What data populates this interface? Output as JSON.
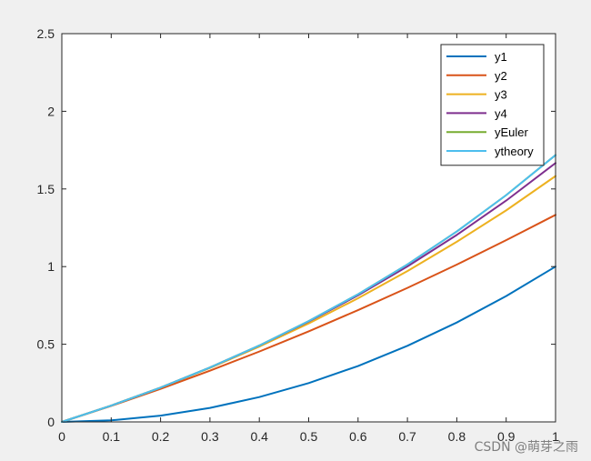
{
  "chart_data": {
    "type": "line",
    "xlim": [
      0,
      1
    ],
    "ylim": [
      0,
      2.5
    ],
    "xticks": [
      0,
      0.1,
      0.2,
      0.3,
      0.4,
      0.5,
      0.6,
      0.7,
      0.8,
      0.9,
      1
    ],
    "xtick_labels": [
      "0",
      "0.1",
      "0.2",
      "0.3",
      "0.4",
      "0.5",
      "0.6",
      "0.7",
      "0.8",
      "0.9",
      "1"
    ],
    "yticks": [
      0,
      0.5,
      1,
      1.5,
      2,
      2.5
    ],
    "ytick_labels": [
      "0",
      "0.5",
      "1",
      "1.5",
      "2",
      "2.5"
    ],
    "grid": false,
    "legend_position": "top-right",
    "x": [
      0,
      0.1,
      0.2,
      0.3,
      0.4,
      0.5,
      0.6,
      0.7,
      0.8,
      0.9,
      1
    ],
    "series": [
      {
        "name": "y1",
        "color": "#0072bd",
        "values": [
          0,
          0.01,
          0.04,
          0.09,
          0.16,
          0.25,
          0.36,
          0.49,
          0.64,
          0.81,
          1.0
        ]
      },
      {
        "name": "y2",
        "color": "#d95319",
        "values": [
          0,
          0.103,
          0.213,
          0.33,
          0.453,
          0.583,
          0.72,
          0.863,
          1.013,
          1.17,
          1.333
        ]
      },
      {
        "name": "y3",
        "color": "#edb120",
        "values": [
          0,
          0.105,
          0.221,
          0.347,
          0.485,
          0.634,
          0.796,
          0.971,
          1.16,
          1.362,
          1.583
        ]
      },
      {
        "name": "y4",
        "color": "#7e2f8e",
        "values": [
          0,
          0.105,
          0.221,
          0.35,
          0.491,
          0.646,
          0.815,
          1.001,
          1.204,
          1.425,
          1.667
        ]
      },
      {
        "name": "yEuler",
        "color": "#77ac30",
        "values": [
          0,
          0.105,
          0.221,
          0.35,
          0.492,
          0.649,
          0.822,
          1.014,
          1.226,
          1.46,
          1.718
        ]
      },
      {
        "name": "ytheory",
        "color": "#4dbeee",
        "values": [
          0,
          0.105,
          0.221,
          0.35,
          0.492,
          0.649,
          0.822,
          1.014,
          1.226,
          1.46,
          1.718
        ]
      }
    ]
  },
  "watermark": "CSDN @萌芽之雨"
}
